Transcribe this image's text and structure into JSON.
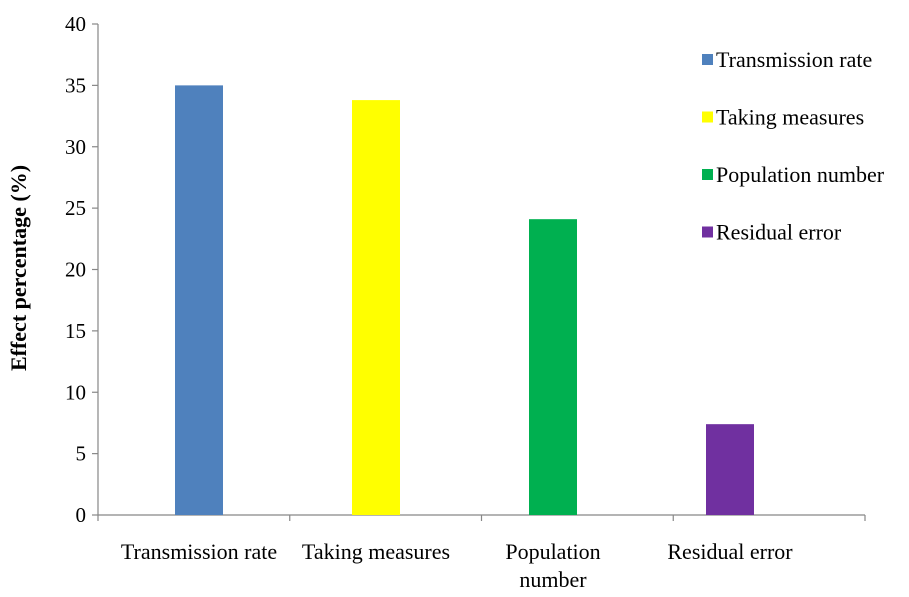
{
  "chart_data": {
    "type": "bar",
    "ylabel": "Effect percentage (%)",
    "xlabel": "",
    "ylim": [
      0,
      40
    ],
    "yticks": [
      0,
      5,
      10,
      15,
      20,
      25,
      30,
      35,
      40
    ],
    "grid": false,
    "legend_position": "top-right",
    "categories": [
      {
        "label_lines": [
          "Transmission rate"
        ],
        "value": 35.0,
        "color": "#4F81BD",
        "legend": "Transmission rate"
      },
      {
        "label_lines": [
          "Taking measures"
        ],
        "value": 33.8,
        "color": "#FFFF00",
        "legend": "Taking measures"
      },
      {
        "label_lines": [
          "Population",
          "number"
        ],
        "value": 24.1,
        "color": "#00B050",
        "legend": "Population number"
      },
      {
        "label_lines": [
          "Residual error"
        ],
        "value": 7.4,
        "color": "#7030A0",
        "legend": "Residual error"
      }
    ]
  }
}
